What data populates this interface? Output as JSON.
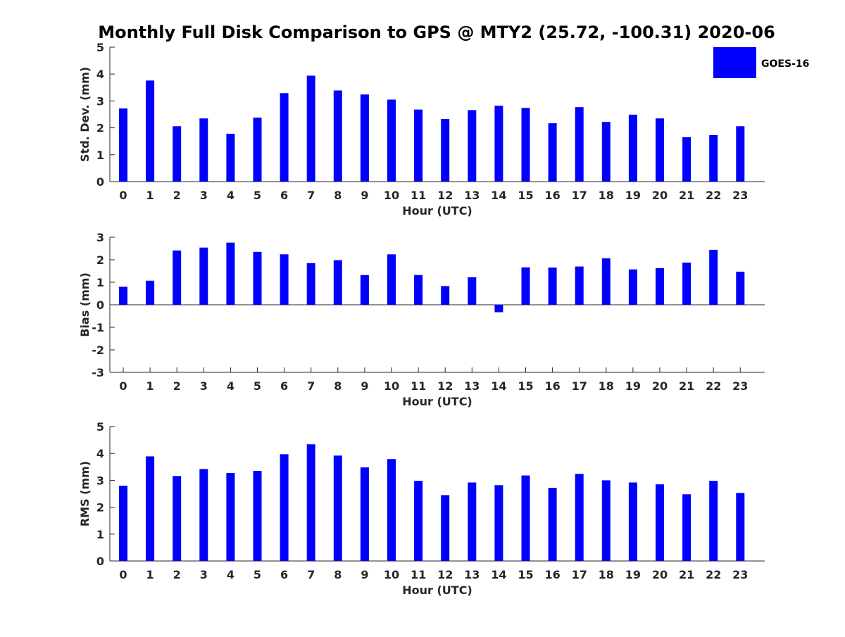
{
  "chart_data": {
    "type": "bar",
    "title": "Monthly Full Disk Comparison to GPS @ MTY2 (25.72, -100.31) 2020-06",
    "legend": {
      "label": "GOES-16",
      "placement": "top-right",
      "color": "#0000ff"
    },
    "bar_color": "#0000ff",
    "categories": [
      "0",
      "1",
      "2",
      "3",
      "4",
      "5",
      "6",
      "7",
      "8",
      "9",
      "10",
      "11",
      "12",
      "13",
      "14",
      "15",
      "16",
      "17",
      "18",
      "19",
      "20",
      "21",
      "22",
      "23"
    ],
    "panels": [
      {
        "id": "std",
        "xlabel": "Hour (UTC)",
        "ylabel": "Std. Dev. (mm)",
        "ylim": [
          0,
          5
        ],
        "yticks": [
          "0",
          "1",
          "2",
          "3",
          "4",
          "5"
        ],
        "series": [
          {
            "name": "GOES-16",
            "values": [
              2.72,
              3.76,
              2.06,
              2.35,
              1.78,
              2.38,
              3.29,
              3.94,
              3.39,
              3.24,
              3.05,
              2.68,
              2.33,
              2.66,
              2.82,
              2.74,
              2.17,
              2.77,
              2.22,
              2.49,
              2.35,
              1.65,
              1.73,
              2.06
            ]
          }
        ]
      },
      {
        "id": "bias",
        "xlabel": "Hour (UTC)",
        "ylabel": "Bias (mm)",
        "ylim": [
          -3,
          3
        ],
        "yticks": [
          "-3",
          "-2",
          "-1",
          "0",
          "1",
          "2",
          "3"
        ],
        "zero_line": true,
        "series": [
          {
            "name": "GOES-16",
            "values": [
              0.8,
              1.07,
              2.41,
              2.54,
              2.76,
              2.35,
              2.24,
              1.85,
              1.98,
              1.32,
              2.24,
              1.32,
              0.83,
              1.22,
              -0.33,
              1.66,
              1.65,
              1.7,
              2.06,
              1.57,
              1.63,
              1.87,
              2.44,
              1.47
            ]
          }
        ]
      },
      {
        "id": "rms",
        "xlabel": "Hour (UTC)",
        "ylabel": "RMS (mm)",
        "ylim": [
          0,
          5
        ],
        "yticks": [
          "0",
          "1",
          "2",
          "3",
          "4",
          "5"
        ],
        "series": [
          {
            "name": "GOES-16",
            "values": [
              2.8,
              3.89,
              3.16,
              3.42,
              3.27,
              3.35,
              3.97,
              4.34,
              3.92,
              3.48,
              3.79,
              2.98,
              2.45,
              2.92,
              2.82,
              3.18,
              2.72,
              3.24,
              3.0,
              2.92,
              2.85,
              2.48,
              2.98,
              2.53
            ]
          }
        ]
      }
    ]
  }
}
